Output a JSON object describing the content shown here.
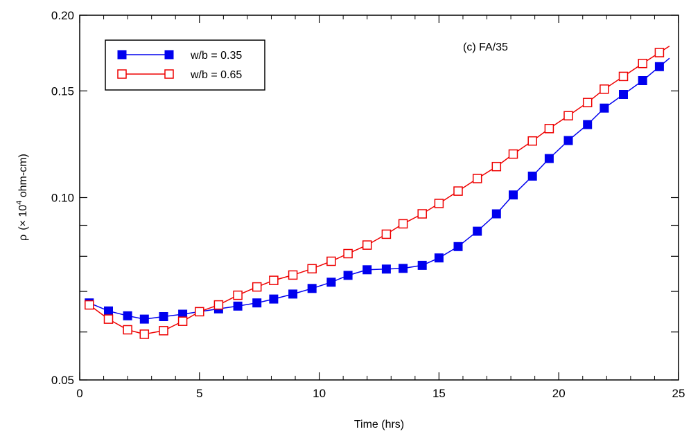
{
  "chart_data": {
    "type": "line",
    "title": "",
    "annotation": "(c) FA/35",
    "xlabel": "Time  (hrs)",
    "ylabel_symbol": "ρ",
    "ylabel_text": "(× 10",
    "ylabel_exp": "4",
    "ylabel_unit": " ohm-cm)",
    "xlim": [
      0,
      25
    ],
    "ylim": [
      0.05,
      0.2
    ],
    "y_scale": "log",
    "x_ticks": [
      0,
      5,
      10,
      15,
      20,
      25
    ],
    "y_tick_labels": [
      {
        "value": 0.05,
        "label": "0.05"
      },
      {
        "value": 0.1,
        "label": "0.10"
      },
      {
        "value": 0.15,
        "label": "0.15"
      },
      {
        "value": 0.2,
        "label": "0.20"
      }
    ],
    "y_minor_ticks": [
      0.06,
      0.07,
      0.08,
      0.09
    ],
    "grid": false,
    "legend_position": "top-left",
    "series": [
      {
        "name": "w/b = 0.35",
        "color": "#0000ee",
        "marker": "filled-square",
        "x": [
          0.4,
          1.2,
          2.0,
          2.7,
          3.5,
          4.3,
          5.0,
          5.8,
          6.6,
          7.4,
          8.1,
          8.9,
          9.7,
          10.5,
          11.2,
          12.0,
          12.8,
          13.5,
          14.3,
          15.0,
          15.8,
          16.6,
          17.4,
          18.1,
          18.9,
          19.6,
          20.4,
          21.2,
          21.9,
          22.7,
          23.5,
          24.2
        ],
        "y": [
          0.067,
          0.065,
          0.0638,
          0.063,
          0.0636,
          0.0642,
          0.0648,
          0.0655,
          0.0662,
          0.067,
          0.068,
          0.0693,
          0.0708,
          0.0725,
          0.0744,
          0.076,
          0.0762,
          0.0764,
          0.0773,
          0.0795,
          0.083,
          0.088,
          0.094,
          0.101,
          0.1085,
          0.116,
          0.1242,
          0.132,
          0.1405,
          0.148,
          0.156,
          0.1645
        ]
      },
      {
        "name": "w/b = 0.65",
        "color": "#ee0000",
        "marker": "open-square",
        "x": [
          0.4,
          1.2,
          2.0,
          2.7,
          3.5,
          4.3,
          5.0,
          5.8,
          6.6,
          7.4,
          8.1,
          8.9,
          9.7,
          10.5,
          11.2,
          12.0,
          12.8,
          13.5,
          14.3,
          15.0,
          15.8,
          16.6,
          17.4,
          18.1,
          18.9,
          19.6,
          20.4,
          21.2,
          21.9,
          22.7,
          23.5,
          24.2
        ],
        "y": [
          0.0665,
          0.063,
          0.0605,
          0.0595,
          0.0603,
          0.0625,
          0.0648,
          0.0665,
          0.069,
          0.0712,
          0.073,
          0.0745,
          0.0763,
          0.0785,
          0.0808,
          0.0835,
          0.087,
          0.0905,
          0.094,
          0.0978,
          0.1025,
          0.1075,
          0.1125,
          0.118,
          0.124,
          0.13,
          0.1365,
          0.1435,
          0.151,
          0.1585,
          0.1665,
          0.1735
        ]
      }
    ]
  }
}
